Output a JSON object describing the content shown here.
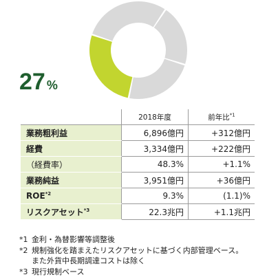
{
  "chart_data": {
    "type": "pie",
    "style": "donut",
    "highlight": {
      "value": 27,
      "color": "#c2d52f"
    },
    "rest_color": "#d9d9d9",
    "slices": [
      {
        "value": 27,
        "color": "#c2d52f"
      },
      {
        "value": 73,
        "color": "#d9d9d9"
      }
    ],
    "big_value": "27",
    "big_unit": "%"
  },
  "table": {
    "col1_header": "2018年度",
    "col2_header": "前年比",
    "col2_header_sup": "*1",
    "rows": [
      {
        "label": "業務粗利益",
        "sup": "",
        "value": "6,896億円",
        "change": "+312億円",
        "bold": true
      },
      {
        "label": "経費",
        "sup": "",
        "value": "3,334億円",
        "change": "+222億円",
        "bold": true
      },
      {
        "label": "（経費率）",
        "sup": "",
        "value": "48.3%",
        "change": "+1.1%",
        "bold": false
      },
      {
        "label": "業務純益",
        "sup": "",
        "value": "3,951億円",
        "change": "+36億円",
        "bold": true
      },
      {
        "label": "ROE",
        "sup": "*2",
        "value": "9.3%",
        "change": "(1.1)%",
        "bold": true
      },
      {
        "label": "リスクアセット",
        "sup": "*3",
        "value": "22.3兆円",
        "change": "+1.1兆円",
        "bold": true
      }
    ]
  },
  "notes": {
    "n1": {
      "num": "*1",
      "text": "金利・為替影響等調整後"
    },
    "n2": {
      "num": "*2",
      "text": "規制強化を踏まえたリスクアセットに基づく内部管理ベース。"
    },
    "n2b": {
      "text": "また外貨中長期調達コストは除く"
    },
    "n3": {
      "num": "*3",
      "text": "現行規制ベース"
    }
  }
}
